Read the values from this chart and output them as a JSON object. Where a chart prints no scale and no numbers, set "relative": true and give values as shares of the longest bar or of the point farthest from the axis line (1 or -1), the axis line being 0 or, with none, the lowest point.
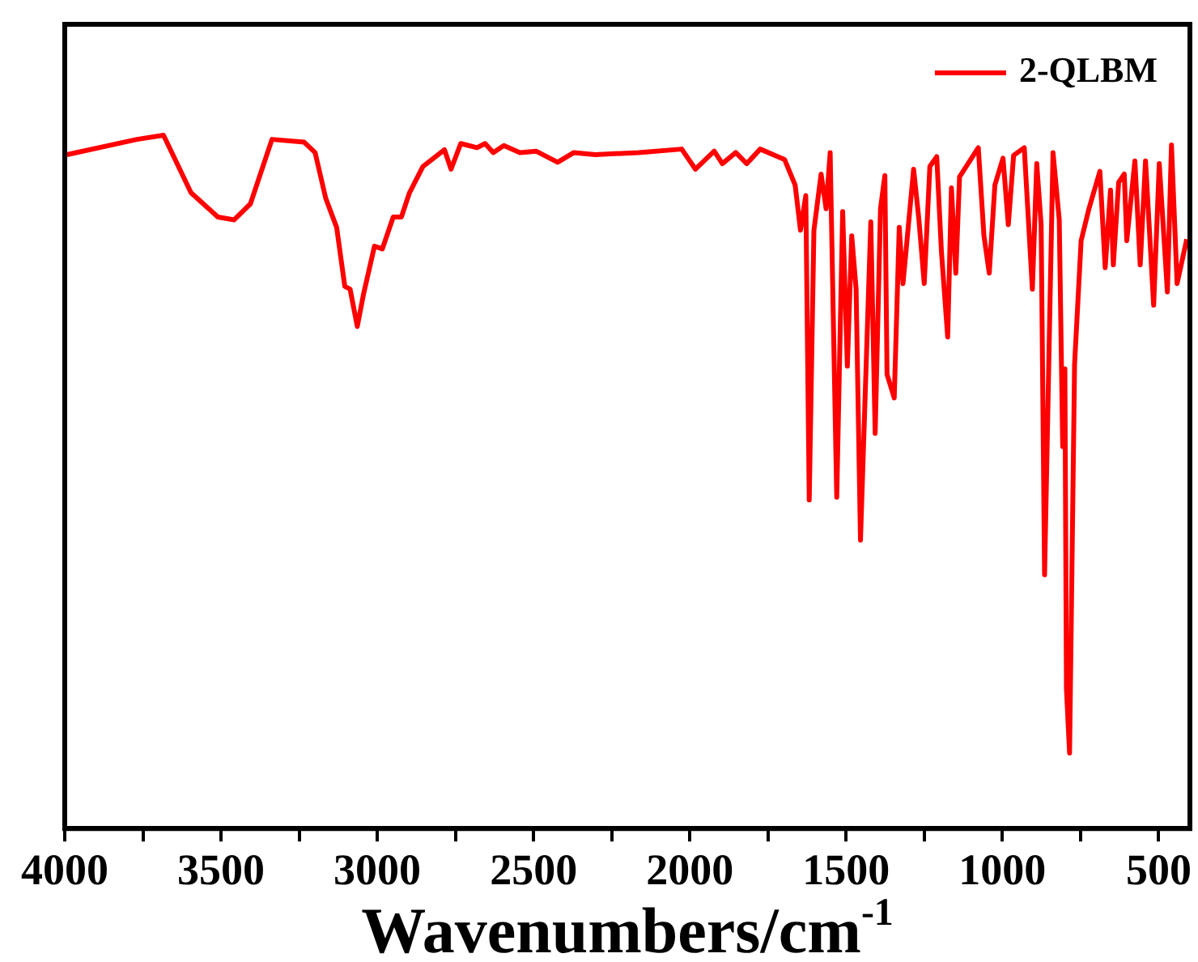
{
  "chart_data": {
    "type": "line",
    "relative": true,
    "xlabel": "Wavenumbers/cm$^{-1}$",
    "legend": "top right",
    "marker": "none",
    "line_style": "solid",
    "xlim": [
      4000,
      400
    ],
    "xticks": [
      4000,
      {
        "value": 3750,
        "label": null
      },
      3500,
      {
        "value": 3250,
        "label": null
      },
      3000,
      {
        "value": 2750,
        "label": null
      },
      2500,
      {
        "value": 2250,
        "label": null
      },
      2000,
      {
        "value": 1750,
        "label": null
      },
      1500,
      {
        "value": 1250,
        "label": null
      },
      1000,
      {
        "value": 750,
        "label": null
      },
      500
    ],
    "series": [
      {
        "name": "2-QLBM",
        "color": "#ff0000",
        "x": [
          3993,
          3769,
          3684,
          3596,
          3510,
          3458,
          3406,
          3337,
          3234,
          3199,
          3165,
          3130,
          3104,
          3087,
          3064,
          3044,
          3009,
          2984,
          2949,
          2923,
          2897,
          2854,
          2785,
          2764,
          2733,
          2681,
          2655,
          2629,
          2595,
          2544,
          2492,
          2423,
          2371,
          2302,
          2164,
          2026,
          1982,
          1922,
          1896,
          1853,
          1818,
          1775,
          1697,
          1663,
          1646,
          1629,
          1618,
          1603,
          1580,
          1564,
          1551,
          1530,
          1511,
          1496,
          1482,
          1468,
          1454,
          1421,
          1407,
          1390,
          1376,
          1369,
          1346,
          1330,
          1318,
          1284,
          1267,
          1250,
          1232,
          1210,
          1195,
          1175,
          1163,
          1149,
          1137,
          1077,
          1059,
          1042,
          1024,
          998,
          981,
          964,
          930,
          904,
          890,
          876,
          865,
          838,
          818,
          807,
          800,
          795,
          785,
          769,
          748,
          723,
          688,
          671,
          654,
          645,
          628,
          610,
          602,
          576,
          559,
          542,
          516,
          498,
          472,
          459,
          441,
          410
        ],
        "values": [
          0.972,
          0.994,
          1,
          0.917,
          0.882,
          0.878,
          0.901,
          0.994,
          0.99,
          0.975,
          0.909,
          0.867,
          0.782,
          0.778,
          0.724,
          0.771,
          0.84,
          0.836,
          0.882,
          0.882,
          0.917,
          0.955,
          0.979,
          0.951,
          0.988,
          0.982,
          0.988,
          0.975,
          0.985,
          0.975,
          0.977,
          0.961,
          0.975,
          0.972,
          0.975,
          0.98,
          0.951,
          0.977,
          0.959,
          0.975,
          0.959,
          0.98,
          0.965,
          0.928,
          0.863,
          0.913,
          0.474,
          0.863,
          0.944,
          0.894,
          0.975,
          0.478,
          0.89,
          0.667,
          0.855,
          0.778,
          0.416,
          0.875,
          0.57,
          0.894,
          0.942,
          0.655,
          0.621,
          0.867,
          0.786,
          0.951,
          0.878,
          0.786,
          0.955,
          0.969,
          0.832,
          0.709,
          0.924,
          0.801,
          0.94,
          0.982,
          0.855,
          0.801,
          0.928,
          0.967,
          0.871,
          0.971,
          0.982,
          0.778,
          0.959,
          0.871,
          0.366,
          0.975,
          0.878,
          0.551,
          0.663,
          0.201,
          0.109,
          0.67,
          0.848,
          0.894,
          0.948,
          0.809,
          0.921,
          0.813,
          0.932,
          0.944,
          0.848,
          0.963,
          0.813,
          0.963,
          0.755,
          0.959,
          0.774,
          0.986,
          0.786,
          0.85
        ]
      }
    ]
  }
}
